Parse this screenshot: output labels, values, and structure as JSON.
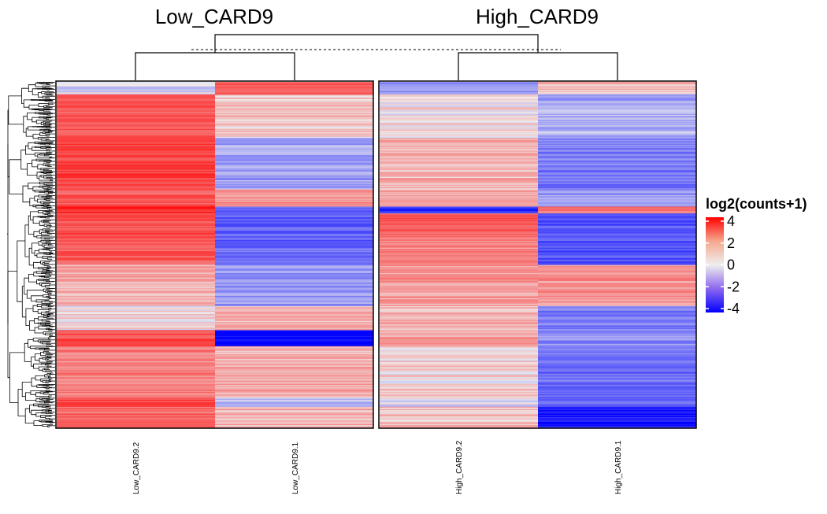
{
  "chart_data": {
    "type": "heatmap",
    "title": "",
    "groups": [
      {
        "name": "Low_CARD9",
        "columns": [
          "Low_CARD9.2",
          "Low_CARD9.1"
        ]
      },
      {
        "name": "High_CARD9",
        "columns": [
          "High_CARD9.2",
          "High_CARD9.1"
        ]
      }
    ],
    "columns": [
      "Low_CARD9.2",
      "Low_CARD9.1",
      "High_CARD9.2",
      "High_CARD9.1"
    ],
    "column_dendrogram": {
      "clusters": [
        [
          "Low_CARD9.2",
          "Low_CARD9.1"
        ],
        [
          "High_CARD9.2",
          "High_CARD9.1"
        ]
      ],
      "split_line": "dashed"
    },
    "row_dendrogram": true,
    "row_count_approx": 300,
    "legend": {
      "title": "log2(counts+1)",
      "ticks": [
        4,
        2,
        0,
        -2,
        -4
      ],
      "tick_labels": [
        "4",
        "2",
        "0",
        "-2",
        "-4"
      ],
      "range": [
        -4,
        4
      ],
      "placement": "right",
      "colors": {
        "low": "#0000FF",
        "mid": "#EEEEEE",
        "high": "#FF0000"
      }
    },
    "row_blocks": [
      {
        "fraction": 0.035,
        "values": [
          -0.3,
          2.2,
          -1.4,
          0.6
        ]
      },
      {
        "fraction": 0.125,
        "values": [
          2.4,
          0.5,
          0.2,
          -0.9
        ]
      },
      {
        "fraction": 0.15,
        "values": [
          2.7,
          -1.1,
          0.8,
          -1.7
        ]
      },
      {
        "fraction": 0.05,
        "values": [
          2.3,
          1.4,
          1.2,
          -1.2
        ]
      },
      {
        "fraction": 0.02,
        "values": [
          3.2,
          -1.8,
          -3.1,
          1.6
        ]
      },
      {
        "fraction": 0.07,
        "values": [
          2.5,
          -2.1,
          2.2,
          -2.4
        ]
      },
      {
        "fraction": 0.08,
        "values": [
          2.2,
          -2.1,
          1.5,
          -2.5
        ]
      },
      {
        "fraction": 0.12,
        "values": [
          0.9,
          -1.2,
          1.2,
          1.4
        ]
      },
      {
        "fraction": 0.07,
        "values": [
          0.2,
          0.9,
          0.8,
          -1.6
        ]
      },
      {
        "fraction": 0.045,
        "values": [
          2.6,
          -4.0,
          1.0,
          -1.4
        ]
      },
      {
        "fraction": 0.15,
        "values": [
          1.6,
          0.9,
          0.3,
          -2.0
        ]
      },
      {
        "fraction": 0.025,
        "values": [
          2.5,
          -0.6,
          -0.2,
          -2.2
        ]
      },
      {
        "fraction": 0.06,
        "values": [
          2.1,
          0.8,
          0.6,
          -3.5
        ]
      }
    ]
  }
}
